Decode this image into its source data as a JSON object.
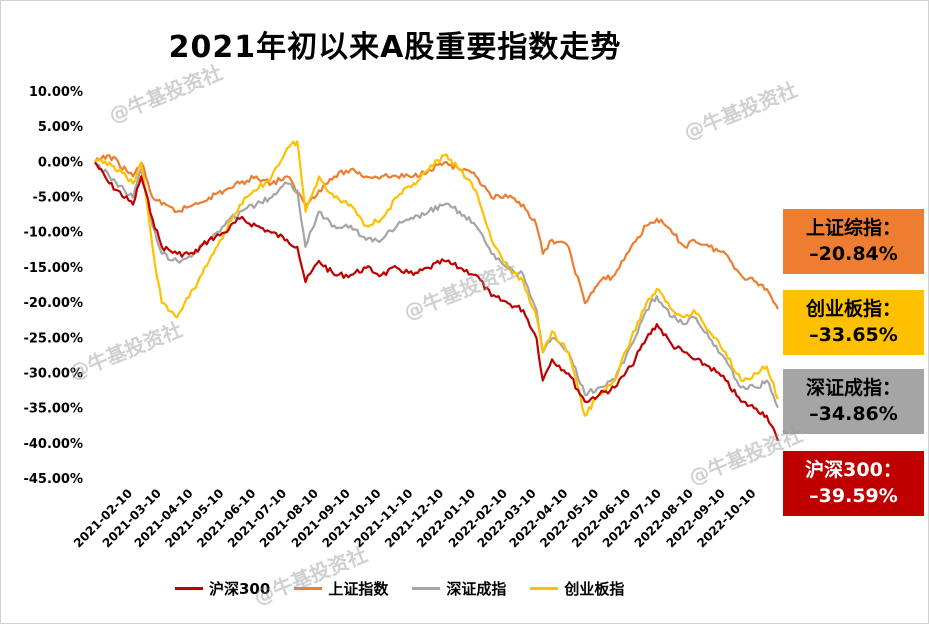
{
  "chart_data": {
    "type": "line",
    "title": "2021年初以来A股重要指数走势",
    "x_ticks": [
      "2021-02-10",
      "2021-03-10",
      "2021-04-10",
      "2021-05-10",
      "2021-06-10",
      "2021-07-10",
      "2021-08-10",
      "2021-09-10",
      "2021-10-10",
      "2021-11-10",
      "2021-12-10",
      "2022-01-10",
      "2022-02-10",
      "2022-03-10",
      "2022-04-10",
      "2022-05-10",
      "2022-06-10",
      "2022-07-10",
      "2022-08-10",
      "2022-09-10",
      "2022-10-10"
    ],
    "y_ticks": [
      "10.00%",
      "5.00%",
      "0.00%",
      "-5.00%",
      "-10.00%",
      "-15.00%",
      "-20.00%",
      "-25.00%",
      "-30.00%",
      "-35.00%",
      "-40.00%",
      "-45.00%"
    ],
    "ylim": [
      -45,
      10
    ],
    "x_start": "2021-01-04",
    "x_end": "2022-10-31",
    "series": [
      {
        "name": "沪深300",
        "color": "#c00000",
        "points": [
          [
            "2021-01-04",
            0
          ],
          [
            "2021-01-18",
            -3
          ],
          [
            "2021-02-10",
            -6
          ],
          [
            "2021-02-18",
            -2
          ],
          [
            "2021-03-01",
            -8
          ],
          [
            "2021-03-10",
            -12
          ],
          [
            "2021-03-25",
            -13
          ],
          [
            "2021-04-10",
            -13
          ],
          [
            "2021-04-25",
            -11
          ],
          [
            "2021-05-10",
            -10
          ],
          [
            "2021-05-25",
            -8
          ],
          [
            "2021-06-10",
            -9
          ],
          [
            "2021-06-25",
            -10
          ],
          [
            "2021-07-10",
            -11
          ],
          [
            "2021-07-20",
            -12
          ],
          [
            "2021-07-28",
            -17
          ],
          [
            "2021-08-10",
            -14
          ],
          [
            "2021-08-25",
            -16
          ],
          [
            "2021-09-10",
            -16
          ],
          [
            "2021-09-25",
            -15
          ],
          [
            "2021-10-10",
            -16
          ],
          [
            "2021-10-25",
            -15
          ],
          [
            "2021-11-10",
            -16
          ],
          [
            "2021-11-25",
            -15
          ],
          [
            "2021-12-10",
            -14
          ],
          [
            "2021-12-25",
            -15
          ],
          [
            "2022-01-10",
            -16
          ],
          [
            "2022-01-25",
            -19
          ],
          [
            "2022-02-10",
            -20
          ],
          [
            "2022-02-25",
            -21
          ],
          [
            "2022-03-10",
            -25
          ],
          [
            "2022-03-16",
            -31
          ],
          [
            "2022-03-25",
            -28
          ],
          [
            "2022-04-10",
            -30
          ],
          [
            "2022-04-26",
            -34
          ],
          [
            "2022-05-10",
            -33
          ],
          [
            "2022-05-25",
            -32
          ],
          [
            "2022-06-10",
            -29
          ],
          [
            "2022-06-25",
            -25
          ],
          [
            "2022-07-05",
            -23
          ],
          [
            "2022-07-20",
            -26
          ],
          [
            "2022-08-01",
            -27
          ],
          [
            "2022-08-10",
            -28
          ],
          [
            "2022-08-25",
            -29
          ],
          [
            "2022-09-10",
            -31
          ],
          [
            "2022-09-25",
            -34
          ],
          [
            "2022-10-10",
            -35
          ],
          [
            "2022-10-20",
            -36
          ],
          [
            "2022-10-31",
            -39.59
          ]
        ]
      },
      {
        "name": "上证指数",
        "color": "#ed7d31",
        "points": [
          [
            "2021-01-04",
            0
          ],
          [
            "2021-01-18",
            1
          ],
          [
            "2021-02-10",
            -2
          ],
          [
            "2021-02-18",
            0
          ],
          [
            "2021-03-01",
            -5
          ],
          [
            "2021-03-10",
            -6
          ],
          [
            "2021-03-25",
            -7
          ],
          [
            "2021-04-10",
            -6
          ],
          [
            "2021-04-25",
            -5
          ],
          [
            "2021-05-10",
            -4
          ],
          [
            "2021-05-25",
            -3
          ],
          [
            "2021-06-10",
            -2
          ],
          [
            "2021-06-25",
            -3
          ],
          [
            "2021-07-10",
            -2
          ],
          [
            "2021-07-28",
            -6
          ],
          [
            "2021-08-10",
            -4
          ],
          [
            "2021-08-25",
            -2
          ],
          [
            "2021-09-10",
            -1
          ],
          [
            "2021-09-25",
            -2
          ],
          [
            "2021-10-10",
            -2
          ],
          [
            "2021-10-25",
            -2
          ],
          [
            "2021-11-10",
            -2
          ],
          [
            "2021-11-25",
            -1
          ],
          [
            "2021-12-10",
            0
          ],
          [
            "2021-12-25",
            -1
          ],
          [
            "2022-01-10",
            -2
          ],
          [
            "2022-01-25",
            -5
          ],
          [
            "2022-02-10",
            -5
          ],
          [
            "2022-02-25",
            -6
          ],
          [
            "2022-03-10",
            -9
          ],
          [
            "2022-03-16",
            -13
          ],
          [
            "2022-03-25",
            -11
          ],
          [
            "2022-04-10",
            -12
          ],
          [
            "2022-04-26",
            -20
          ],
          [
            "2022-05-10",
            -17
          ],
          [
            "2022-05-25",
            -16
          ],
          [
            "2022-06-10",
            -12
          ],
          [
            "2022-06-25",
            -9
          ],
          [
            "2022-07-05",
            -8
          ],
          [
            "2022-07-20",
            -10
          ],
          [
            "2022-08-01",
            -12
          ],
          [
            "2022-08-10",
            -11
          ],
          [
            "2022-08-25",
            -12
          ],
          [
            "2022-09-10",
            -13
          ],
          [
            "2022-09-25",
            -16
          ],
          [
            "2022-10-10",
            -17
          ],
          [
            "2022-10-20",
            -18
          ],
          [
            "2022-10-31",
            -20.84
          ]
        ]
      },
      {
        "name": "深证成指",
        "color": "#a5a5a5",
        "points": [
          [
            "2021-01-04",
            0
          ],
          [
            "2021-01-18",
            -2
          ],
          [
            "2021-02-10",
            -5
          ],
          [
            "2021-02-18",
            -1
          ],
          [
            "2021-03-01",
            -9
          ],
          [
            "2021-03-10",
            -13
          ],
          [
            "2021-03-25",
            -14
          ],
          [
            "2021-04-10",
            -13
          ],
          [
            "2021-04-25",
            -11
          ],
          [
            "2021-05-10",
            -9
          ],
          [
            "2021-05-25",
            -7
          ],
          [
            "2021-06-10",
            -6
          ],
          [
            "2021-06-25",
            -5
          ],
          [
            "2021-07-10",
            -3
          ],
          [
            "2021-07-20",
            -4
          ],
          [
            "2021-07-28",
            -12
          ],
          [
            "2021-08-10",
            -7
          ],
          [
            "2021-08-25",
            -9
          ],
          [
            "2021-09-10",
            -9
          ],
          [
            "2021-09-25",
            -11
          ],
          [
            "2021-10-10",
            -11
          ],
          [
            "2021-10-25",
            -9
          ],
          [
            "2021-11-10",
            -8
          ],
          [
            "2021-11-25",
            -7
          ],
          [
            "2021-12-10",
            -6
          ],
          [
            "2021-12-25",
            -7
          ],
          [
            "2022-01-10",
            -9
          ],
          [
            "2022-01-25",
            -13
          ],
          [
            "2022-02-10",
            -15
          ],
          [
            "2022-02-25",
            -16
          ],
          [
            "2022-03-10",
            -21
          ],
          [
            "2022-03-16",
            -27
          ],
          [
            "2022-03-25",
            -25
          ],
          [
            "2022-04-10",
            -27
          ],
          [
            "2022-04-26",
            -33
          ],
          [
            "2022-05-10",
            -32
          ],
          [
            "2022-05-25",
            -31
          ],
          [
            "2022-06-10",
            -26
          ],
          [
            "2022-06-25",
            -21
          ],
          [
            "2022-07-05",
            -19
          ],
          [
            "2022-07-20",
            -22
          ],
          [
            "2022-08-01",
            -23
          ],
          [
            "2022-08-10",
            -22
          ],
          [
            "2022-08-25",
            -25
          ],
          [
            "2022-09-10",
            -28
          ],
          [
            "2022-09-25",
            -32
          ],
          [
            "2022-10-10",
            -32
          ],
          [
            "2022-10-20",
            -31
          ],
          [
            "2022-10-31",
            -34.86
          ]
        ]
      },
      {
        "name": "创业板指",
        "color": "#ffc000",
        "points": [
          [
            "2021-01-04",
            0
          ],
          [
            "2021-01-18",
            0
          ],
          [
            "2021-02-10",
            -3
          ],
          [
            "2021-02-18",
            0
          ],
          [
            "2021-03-01",
            -12
          ],
          [
            "2021-03-10",
            -20
          ],
          [
            "2021-03-25",
            -22
          ],
          [
            "2021-04-10",
            -18
          ],
          [
            "2021-04-25",
            -14
          ],
          [
            "2021-05-10",
            -10
          ],
          [
            "2021-05-25",
            -6
          ],
          [
            "2021-06-10",
            -4
          ],
          [
            "2021-06-25",
            -2
          ],
          [
            "2021-07-10",
            2
          ],
          [
            "2021-07-20",
            3
          ],
          [
            "2021-07-28",
            -7
          ],
          [
            "2021-08-10",
            -2
          ],
          [
            "2021-08-25",
            -5
          ],
          [
            "2021-09-10",
            -6
          ],
          [
            "2021-09-25",
            -9
          ],
          [
            "2021-10-10",
            -8
          ],
          [
            "2021-10-25",
            -5
          ],
          [
            "2021-11-10",
            -3
          ],
          [
            "2021-11-25",
            -1
          ],
          [
            "2021-12-10",
            1
          ],
          [
            "2021-12-25",
            -1
          ],
          [
            "2022-01-10",
            -4
          ],
          [
            "2022-01-25",
            -11
          ],
          [
            "2022-02-10",
            -15
          ],
          [
            "2022-02-25",
            -17
          ],
          [
            "2022-03-10",
            -22
          ],
          [
            "2022-03-16",
            -27
          ],
          [
            "2022-03-25",
            -24
          ],
          [
            "2022-04-10",
            -27
          ],
          [
            "2022-04-26",
            -36
          ],
          [
            "2022-05-10",
            -33
          ],
          [
            "2022-05-25",
            -31
          ],
          [
            "2022-06-10",
            -25
          ],
          [
            "2022-06-25",
            -20
          ],
          [
            "2022-07-05",
            -18
          ],
          [
            "2022-07-20",
            -21
          ],
          [
            "2022-08-01",
            -22
          ],
          [
            "2022-08-10",
            -21
          ],
          [
            "2022-08-25",
            -24
          ],
          [
            "2022-09-10",
            -27
          ],
          [
            "2022-09-25",
            -31
          ],
          [
            "2022-10-10",
            -30
          ],
          [
            "2022-10-20",
            -29
          ],
          [
            "2022-10-31",
            -33.65
          ]
        ]
      }
    ],
    "legend": [
      "沪深300",
      "上证指数",
      "深证成指",
      "创业板指"
    ],
    "legend_position": "bottom",
    "grid": false
  },
  "callouts": [
    {
      "label": "上证综指：",
      "value": "–20.84%",
      "bg": "#ed7d31"
    },
    {
      "label": "创业板指：",
      "value": "–33.65%",
      "bg": "#ffc000"
    },
    {
      "label": "深证成指：",
      "value": "–34.86%",
      "bg": "#a5a5a5"
    },
    {
      "label": "沪深300：",
      "value": "–39.59%",
      "bg": "#c00000"
    }
  ],
  "watermark_text": "@牛基投资社"
}
